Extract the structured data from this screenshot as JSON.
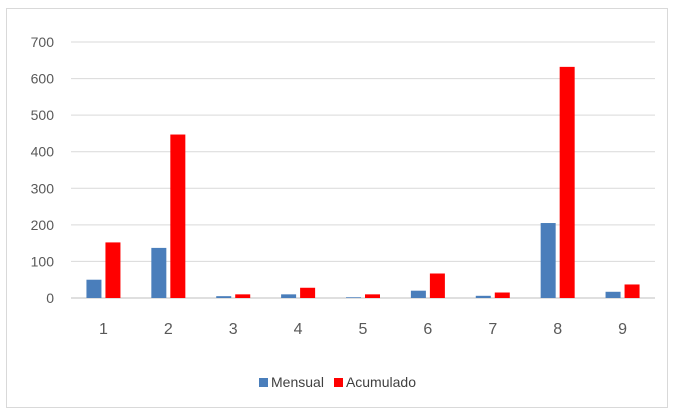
{
  "chart_data": {
    "type": "bar",
    "title": "",
    "xlabel": "",
    "ylabel": "",
    "categories": [
      "1",
      "2",
      "3",
      "4",
      "5",
      "6",
      "7",
      "8",
      "9"
    ],
    "series": [
      {
        "name": "Mensual",
        "color": "#4a7ebb",
        "values": [
          50,
          137,
          5,
          10,
          2,
          20,
          6,
          205,
          17
        ]
      },
      {
        "name": "Acumulado",
        "color": "#ff0000",
        "values": [
          152,
          447,
          10,
          28,
          10,
          67,
          15,
          632,
          37
        ]
      }
    ],
    "ylim": [
      0,
      700
    ],
    "yticks": [
      "0",
      "100",
      "200",
      "300",
      "400",
      "500",
      "600",
      "700"
    ],
    "grid": true,
    "legend": "bottom"
  }
}
